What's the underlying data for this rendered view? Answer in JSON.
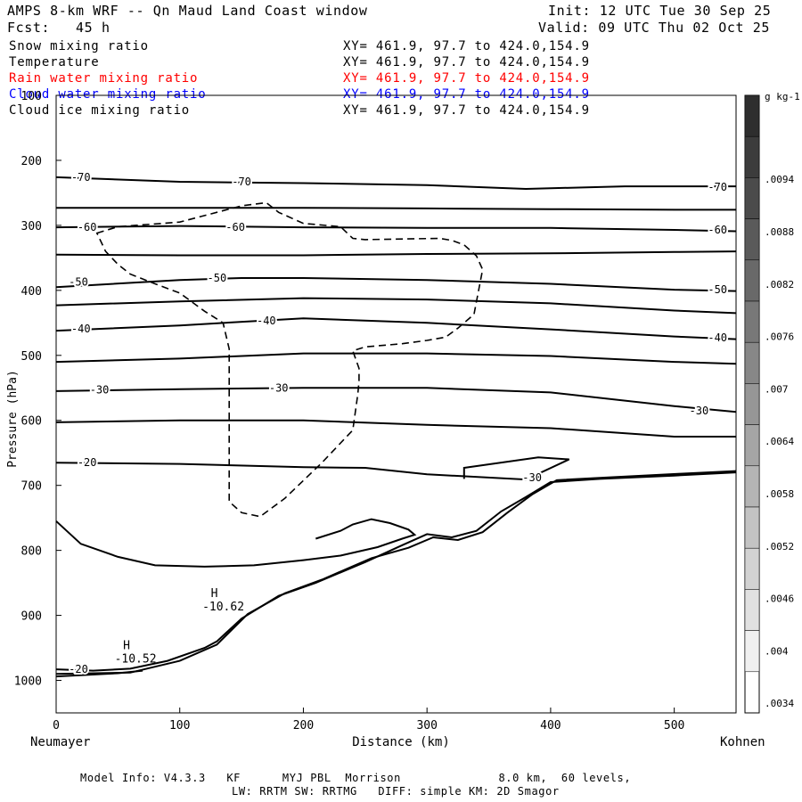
{
  "header": {
    "title": "AMPS 8-km WRF -- Qn Maud Land Coast window",
    "forecast": "Fcst:   45 h",
    "init": "Init: 12 UTC Tue 30 Sep 25",
    "valid": "Valid: 09 UTC Thu 02 Oct 25"
  },
  "variables": [
    {
      "name": "Snow mixing ratio",
      "xy": "XY= 461.9, 97.7 to 424.0,154.9",
      "color": "#000000"
    },
    {
      "name": "Temperature",
      "xy": "XY= 461.9, 97.7 to 424.0,154.9",
      "color": "#000000"
    },
    {
      "name": "Rain water mixing ratio",
      "xy": "XY= 461.9, 97.7 to 424.0,154.9",
      "color": "#ff0000"
    },
    {
      "name": "Cloud water mixing ratio",
      "xy": "XY= 461.9, 97.7 to 424.0,154.9",
      "color": "#0000ff"
    },
    {
      "name": "Cloud ice mixing ratio",
      "xy": "XY= 461.9, 97.7 to 424.0,154.9",
      "color": "#000000"
    }
  ],
  "footer": {
    "line1": "Model Info: V4.3.3   KF      MYJ PBL  Morrison              8.0 km,  60 levels,",
    "line2": "LW: RRTM SW: RRTMG   DIFF: simple KM: 2D Smagor"
  },
  "chart_data": {
    "type": "line",
    "title": "AMPS 8-km WRF -- Qn Maud Land Coast window",
    "xlabel": "Distance (km)",
    "ylabel": "Pressure (hPa)",
    "xlim": [
      0,
      550
    ],
    "ylim": [
      1050,
      100
    ],
    "x_ticks": [
      0,
      100,
      200,
      300,
      400,
      500
    ],
    "y_ticks": [
      100,
      200,
      300,
      400,
      500,
      600,
      700,
      800,
      900,
      1000
    ],
    "x_endpoint_labels": {
      "left": "Neumayer",
      "right": "Kohnen"
    },
    "colorbar": {
      "unit": "g kg-1",
      "tick_labels": [
        ".0094",
        ".0088",
        ".0082",
        ".0076",
        ".007",
        ".0064",
        ".0058",
        ".0052",
        ".0046",
        ".004",
        ".0034"
      ],
      "shades": [
        "#2e2e2e",
        "#3c3c3c",
        "#4b4b4b",
        "#5a5a5a",
        "#696969",
        "#787878",
        "#878787",
        "#969696",
        "#a5a5a5",
        "#b4b4b4",
        "#c3c3c3",
        "#d2d2d2",
        "#e1e1e1",
        "#f0f0f0"
      ]
    },
    "temperature_isotherms": [
      {
        "label": "-70",
        "points": [
          [
            0,
            226
          ],
          [
            100,
            233
          ],
          [
            200,
            235
          ],
          [
            300,
            238
          ],
          [
            380,
            244
          ],
          [
            460,
            240
          ],
          [
            550,
            240
          ]
        ]
      },
      {
        "label": "",
        "points": [
          [
            0,
            273
          ],
          [
            100,
            273
          ],
          [
            200,
            273
          ],
          [
            300,
            274
          ],
          [
            400,
            275
          ],
          [
            500,
            276
          ],
          [
            550,
            276
          ]
        ]
      },
      {
        "label": "-60",
        "points": [
          [
            0,
            303
          ],
          [
            100,
            301
          ],
          [
            200,
            303
          ],
          [
            300,
            304
          ],
          [
            400,
            304
          ],
          [
            500,
            307
          ],
          [
            550,
            309
          ]
        ]
      },
      {
        "label": "",
        "points": [
          [
            0,
            345
          ],
          [
            100,
            346
          ],
          [
            200,
            346
          ],
          [
            300,
            344
          ],
          [
            400,
            343
          ],
          [
            500,
            341
          ],
          [
            550,
            340
          ]
        ]
      },
      {
        "label": "-50",
        "points": [
          [
            0,
            395
          ],
          [
            100,
            384
          ],
          [
            150,
            381
          ],
          [
            200,
            381
          ],
          [
            300,
            384
          ],
          [
            400,
            390
          ],
          [
            500,
            399
          ],
          [
            550,
            401
          ]
        ]
      },
      {
        "label": "",
        "points": [
          [
            0,
            423
          ],
          [
            100,
            417
          ],
          [
            200,
            412
          ],
          [
            300,
            414
          ],
          [
            400,
            420
          ],
          [
            500,
            431
          ],
          [
            550,
            435
          ]
        ]
      },
      {
        "label": "-40",
        "points": [
          [
            0,
            462
          ],
          [
            100,
            454
          ],
          [
            200,
            443
          ],
          [
            300,
            450
          ],
          [
            400,
            460
          ],
          [
            500,
            471
          ],
          [
            550,
            475
          ]
        ]
      },
      {
        "label": "",
        "points": [
          [
            0,
            510
          ],
          [
            100,
            505
          ],
          [
            200,
            497
          ],
          [
            300,
            497
          ],
          [
            400,
            501
          ],
          [
            500,
            510
          ],
          [
            550,
            513
          ]
        ]
      },
      {
        "label": "-30",
        "points": [
          [
            0,
            555
          ],
          [
            100,
            552
          ],
          [
            200,
            550
          ],
          [
            300,
            550
          ],
          [
            400,
            557
          ],
          [
            500,
            578
          ],
          [
            550,
            587
          ]
        ]
      },
      {
        "label": "",
        "points": [
          [
            0,
            603
          ],
          [
            100,
            600
          ],
          [
            200,
            600
          ],
          [
            300,
            607
          ],
          [
            400,
            612
          ],
          [
            500,
            625
          ],
          [
            550,
            625
          ]
        ]
      },
      {
        "label": "-20",
        "points": [
          [
            0,
            665
          ],
          [
            100,
            667
          ],
          [
            200,
            672
          ],
          [
            250,
            673
          ],
          [
            300,
            683
          ],
          [
            380,
            691
          ],
          [
            415,
            660
          ],
          [
            390,
            657
          ],
          [
            330,
            673
          ],
          [
            330,
            690
          ]
        ]
      },
      {
        "label": "-20",
        "points": [
          [
            0,
            994
          ],
          [
            50,
            989
          ],
          [
            70,
            985
          ]
        ]
      }
    ],
    "labeled_values": [
      {
        "text": "-70",
        "x": 20,
        "p": 226
      },
      {
        "text": "-70",
        "x": 150,
        "p": 233
      },
      {
        "text": "-70",
        "x": 535,
        "p": 241
      },
      {
        "text": "-60",
        "x": 25,
        "p": 303
      },
      {
        "text": "-60",
        "x": 145,
        "p": 303
      },
      {
        "text": "-60",
        "x": 535,
        "p": 307
      },
      {
        "text": "-50",
        "x": 18,
        "p": 387
      },
      {
        "text": "-50",
        "x": 130,
        "p": 381
      },
      {
        "text": "-50",
        "x": 535,
        "p": 399
      },
      {
        "text": "-40",
        "x": 20,
        "p": 459
      },
      {
        "text": "-40",
        "x": 170,
        "p": 447
      },
      {
        "text": "-40",
        "x": 535,
        "p": 473
      },
      {
        "text": "-30",
        "x": 35,
        "p": 553
      },
      {
        "text": "-30",
        "x": 180,
        "p": 550
      },
      {
        "text": "-30",
        "x": 520,
        "p": 585
      },
      {
        "text": "-30",
        "x": 385,
        "p": 688
      },
      {
        "text": "-20",
        "x": 25,
        "p": 665
      },
      {
        "text": "-20",
        "x": 18,
        "p": 983
      }
    ],
    "high_markers": [
      {
        "label": "H",
        "value": "-10.62",
        "x": 128,
        "p": 880
      },
      {
        "label": "H",
        "value": "-10.52",
        "x": 57,
        "p": 960
      }
    ],
    "snow_mixing_dashed": [
      [
        33,
        312
      ],
      [
        50,
        302
      ],
      [
        100,
        295
      ],
      [
        150,
        270
      ],
      [
        170,
        265
      ],
      [
        180,
        280
      ],
      [
        200,
        297
      ],
      [
        230,
        302
      ],
      [
        240,
        320
      ],
      [
        250,
        322
      ],
      [
        310,
        320
      ],
      [
        320,
        323
      ],
      [
        330,
        330
      ],
      [
        340,
        347
      ],
      [
        345,
        368
      ],
      [
        338,
        437
      ],
      [
        325,
        458
      ],
      [
        315,
        472
      ],
      [
        300,
        477
      ],
      [
        280,
        482
      ],
      [
        250,
        487
      ],
      [
        240,
        493
      ],
      [
        245,
        520
      ],
      [
        245,
        540
      ],
      [
        244,
        560
      ],
      [
        240,
        615
      ],
      [
        215,
        665
      ],
      [
        185,
        720
      ],
      [
        165,
        748
      ],
      [
        150,
        742
      ],
      [
        140,
        725
      ],
      [
        140,
        680
      ],
      [
        140,
        580
      ],
      [
        140,
        490
      ],
      [
        135,
        450
      ],
      [
        120,
        432
      ],
      [
        110,
        418
      ],
      [
        100,
        404
      ],
      [
        80,
        390
      ],
      [
        60,
        375
      ],
      [
        50,
        360
      ],
      [
        40,
        340
      ],
      [
        33,
        312
      ]
    ]
  }
}
